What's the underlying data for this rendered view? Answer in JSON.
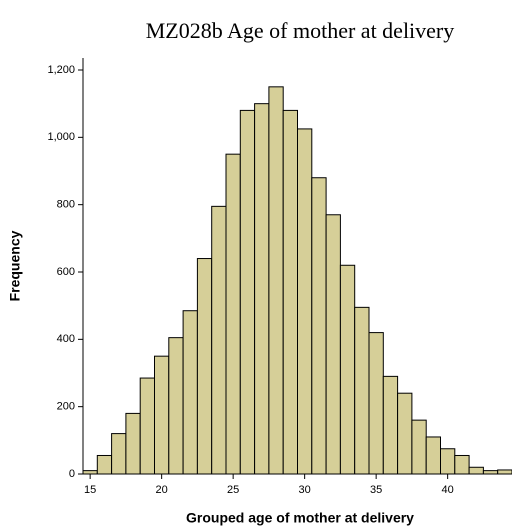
{
  "chart_data": {
    "type": "histogram",
    "title": "MZ028b Age of mother at delivery",
    "xlabel": "Grouped age of mother at delivery",
    "ylabel": "Frequency",
    "bins": [
      14.5,
      15.5,
      16.5,
      17.5,
      18.5,
      19.5,
      20.5,
      21.5,
      22.5,
      23.5,
      24.5,
      25.5,
      26.5,
      27.5,
      28.5,
      29.5,
      30.5,
      31.5,
      32.5,
      33.5,
      34.5,
      35.5,
      36.5,
      37.5,
      38.5,
      39.5,
      40.5,
      41.5,
      42.5,
      43.5,
      44.5
    ],
    "values": [
      10,
      55,
      120,
      180,
      285,
      350,
      405,
      485,
      640,
      795,
      950,
      1080,
      1100,
      1150,
      1080,
      1025,
      880,
      770,
      620,
      495,
      420,
      290,
      240,
      160,
      110,
      75,
      55,
      20,
      10,
      12
    ],
    "color": "#d6cf98",
    "xlim": [
      14.5,
      44.5
    ],
    "xticks": [
      15,
      20,
      25,
      30,
      35,
      40
    ],
    "ylim": [
      0,
      1200
    ],
    "yticks": [
      0,
      200,
      400,
      600,
      800,
      {
        "value": 1000,
        "label": "1,000"
      },
      {
        "value": 1200,
        "label": "1,200"
      }
    ]
  }
}
